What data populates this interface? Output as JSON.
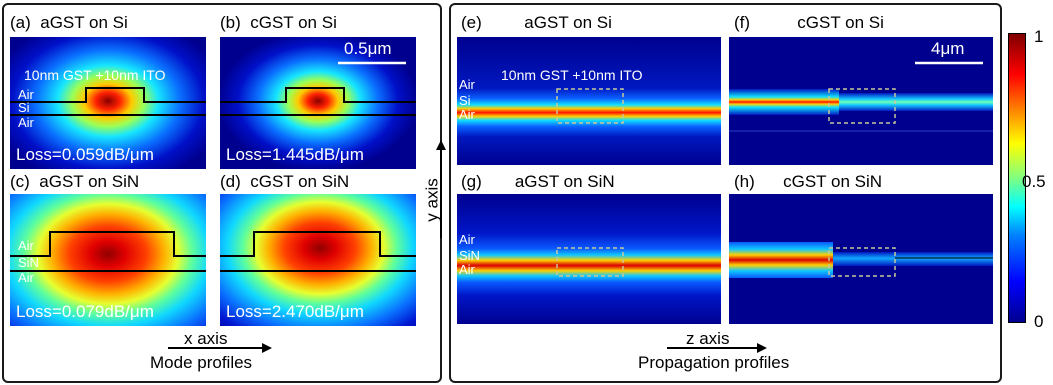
{
  "mode_panels": [
    {
      "label": "(a)",
      "title": "aGST on Si",
      "loss": "Loss=0.059dB/μm",
      "layers": [
        "Air",
        "Si",
        "Air"
      ]
    },
    {
      "label": "(b)",
      "title": "cGST on Si",
      "loss": "Loss=1.445dB/μm"
    },
    {
      "label": "(c)",
      "title": "aGST on SiN",
      "loss": "Loss=0.079dB/μm",
      "layers": [
        "Air",
        "SiN",
        "Air"
      ]
    },
    {
      "label": "(d)",
      "title": "cGST on SiN",
      "loss": "Loss=2.470dB/μm"
    }
  ],
  "prop_panels": [
    {
      "label": "(e)",
      "title": "aGST on Si",
      "layers": [
        "Air",
        "Si",
        "Air"
      ]
    },
    {
      "label": "(f)",
      "title": "cGST on Si"
    },
    {
      "label": "(g)",
      "title": "aGST on SiN",
      "layers": [
        "Air",
        "SiN",
        "Air"
      ]
    },
    {
      "label": "(h)",
      "title": "cGST on SiN"
    }
  ],
  "annotations": {
    "structure_left": "10nm GST +10nm ITO",
    "structure_right": "10nm GST +10nm ITO",
    "scale_left": "0.5μm",
    "scale_right": "4μm"
  },
  "axes": {
    "x_axis": "x axis",
    "y_axis": "y axis",
    "z_axis": "z axis"
  },
  "captions": {
    "left": "Mode profiles",
    "right": "Propagation profiles"
  },
  "colorbar": {
    "ticks": [
      "1",
      "0.5",
      "0"
    ],
    "colormap": [
      "#00008f",
      "#0000ff",
      "#00ffff",
      "#ffff00",
      "#ff0000",
      "#800000"
    ]
  }
}
